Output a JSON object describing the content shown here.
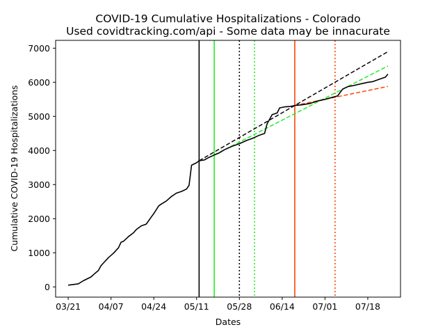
{
  "chart_data": {
    "type": "line",
    "title": "COVID-19 Cumulative Hospitalizations - Colorado",
    "subtitle": "Used covidtracking.com/api - Some data may be innacurate",
    "xlabel": "Dates",
    "ylabel": "Cumulative COVID-19 Hospitalizations",
    "x_ticks": [
      "03/21",
      "04/07",
      "04/24",
      "05/11",
      "05/28",
      "06/14",
      "07/01",
      "07/18"
    ],
    "y_ticks": [
      0,
      1000,
      2000,
      3000,
      4000,
      5000,
      6000,
      7000
    ],
    "xlim": [
      "2020-03-16",
      "2020-07-31"
    ],
    "ylim": [
      -300,
      7230
    ],
    "grid": false,
    "legend": "none",
    "series": [
      {
        "style": "solid",
        "color": "#000000",
        "x": [
          "2020-03-21",
          "2020-03-25",
          "2020-03-27",
          "2020-03-30",
          "2020-04-01",
          "2020-04-02",
          "2020-04-03",
          "2020-04-04",
          "2020-04-06",
          "2020-04-08",
          "2020-04-10",
          "2020-04-11",
          "2020-04-12",
          "2020-04-14",
          "2020-04-16",
          "2020-04-17",
          "2020-04-19",
          "2020-04-21",
          "2020-04-23",
          "2020-04-24",
          "2020-04-26",
          "2020-04-27",
          "2020-04-29",
          "2020-05-01",
          "2020-05-03",
          "2020-05-05",
          "2020-05-07",
          "2020-05-08",
          "2020-05-09",
          "2020-05-11",
          "2020-05-12",
          "2020-05-14",
          "2020-05-16",
          "2020-05-18",
          "2020-05-20",
          "2020-05-22",
          "2020-05-25",
          "2020-05-28",
          "2020-05-31",
          "2020-06-02",
          "2020-06-05",
          "2020-06-07",
          "2020-06-08",
          "2020-06-10",
          "2020-06-12",
          "2020-06-13",
          "2020-06-15",
          "2020-06-17",
          "2020-06-19",
          "2020-06-22",
          "2020-06-25",
          "2020-06-28",
          "2020-07-01",
          "2020-07-04",
          "2020-07-06",
          "2020-07-08",
          "2020-07-10",
          "2020-07-12",
          "2020-07-15",
          "2020-07-18",
          "2020-07-20",
          "2020-07-23",
          "2020-07-25",
          "2020-07-26"
        ],
        "values": [
          50,
          90,
          180,
          290,
          420,
          480,
          620,
          700,
          860,
          990,
          1150,
          1310,
          1340,
          1480,
          1590,
          1680,
          1790,
          1840,
          2050,
          2150,
          2380,
          2430,
          2520,
          2650,
          2750,
          2800,
          2870,
          2980,
          3570,
          3640,
          3700,
          3720,
          3800,
          3870,
          3930,
          4020,
          4120,
          4200,
          4300,
          4350,
          4450,
          4500,
          4780,
          5050,
          5100,
          5250,
          5280,
          5290,
          5320,
          5340,
          5380,
          5450,
          5500,
          5560,
          5600,
          5800,
          5870,
          5900,
          5950,
          6000,
          6020,
          6100,
          6150,
          6240
        ]
      },
      {
        "style": "dashed",
        "color": "#000000",
        "x": [
          "2020-05-12",
          "2020-07-26"
        ],
        "values": [
          3700,
          6900
        ]
      },
      {
        "style": "dashed",
        "color": "#22ee22",
        "x": [
          "2020-05-18",
          "2020-07-26"
        ],
        "values": [
          3870,
          6480
        ]
      },
      {
        "style": "dashed",
        "color": "#ff4400",
        "x": [
          "2020-06-19",
          "2020-07-26"
        ],
        "values": [
          5320,
          5880
        ]
      }
    ],
    "vertical_lines": [
      {
        "x": "2020-05-12",
        "style": "solid",
        "color": "#000000"
      },
      {
        "x": "2020-05-18",
        "style": "solid",
        "color": "#22ee22"
      },
      {
        "x": "2020-05-28",
        "style": "dotted",
        "color": "#000000"
      },
      {
        "x": "2020-06-03",
        "style": "dotted",
        "color": "#22ee22"
      },
      {
        "x": "2020-06-19",
        "style": "solid",
        "color": "#ff4400"
      },
      {
        "x": "2020-07-05",
        "style": "dotted",
        "color": "#ff4400"
      }
    ]
  }
}
